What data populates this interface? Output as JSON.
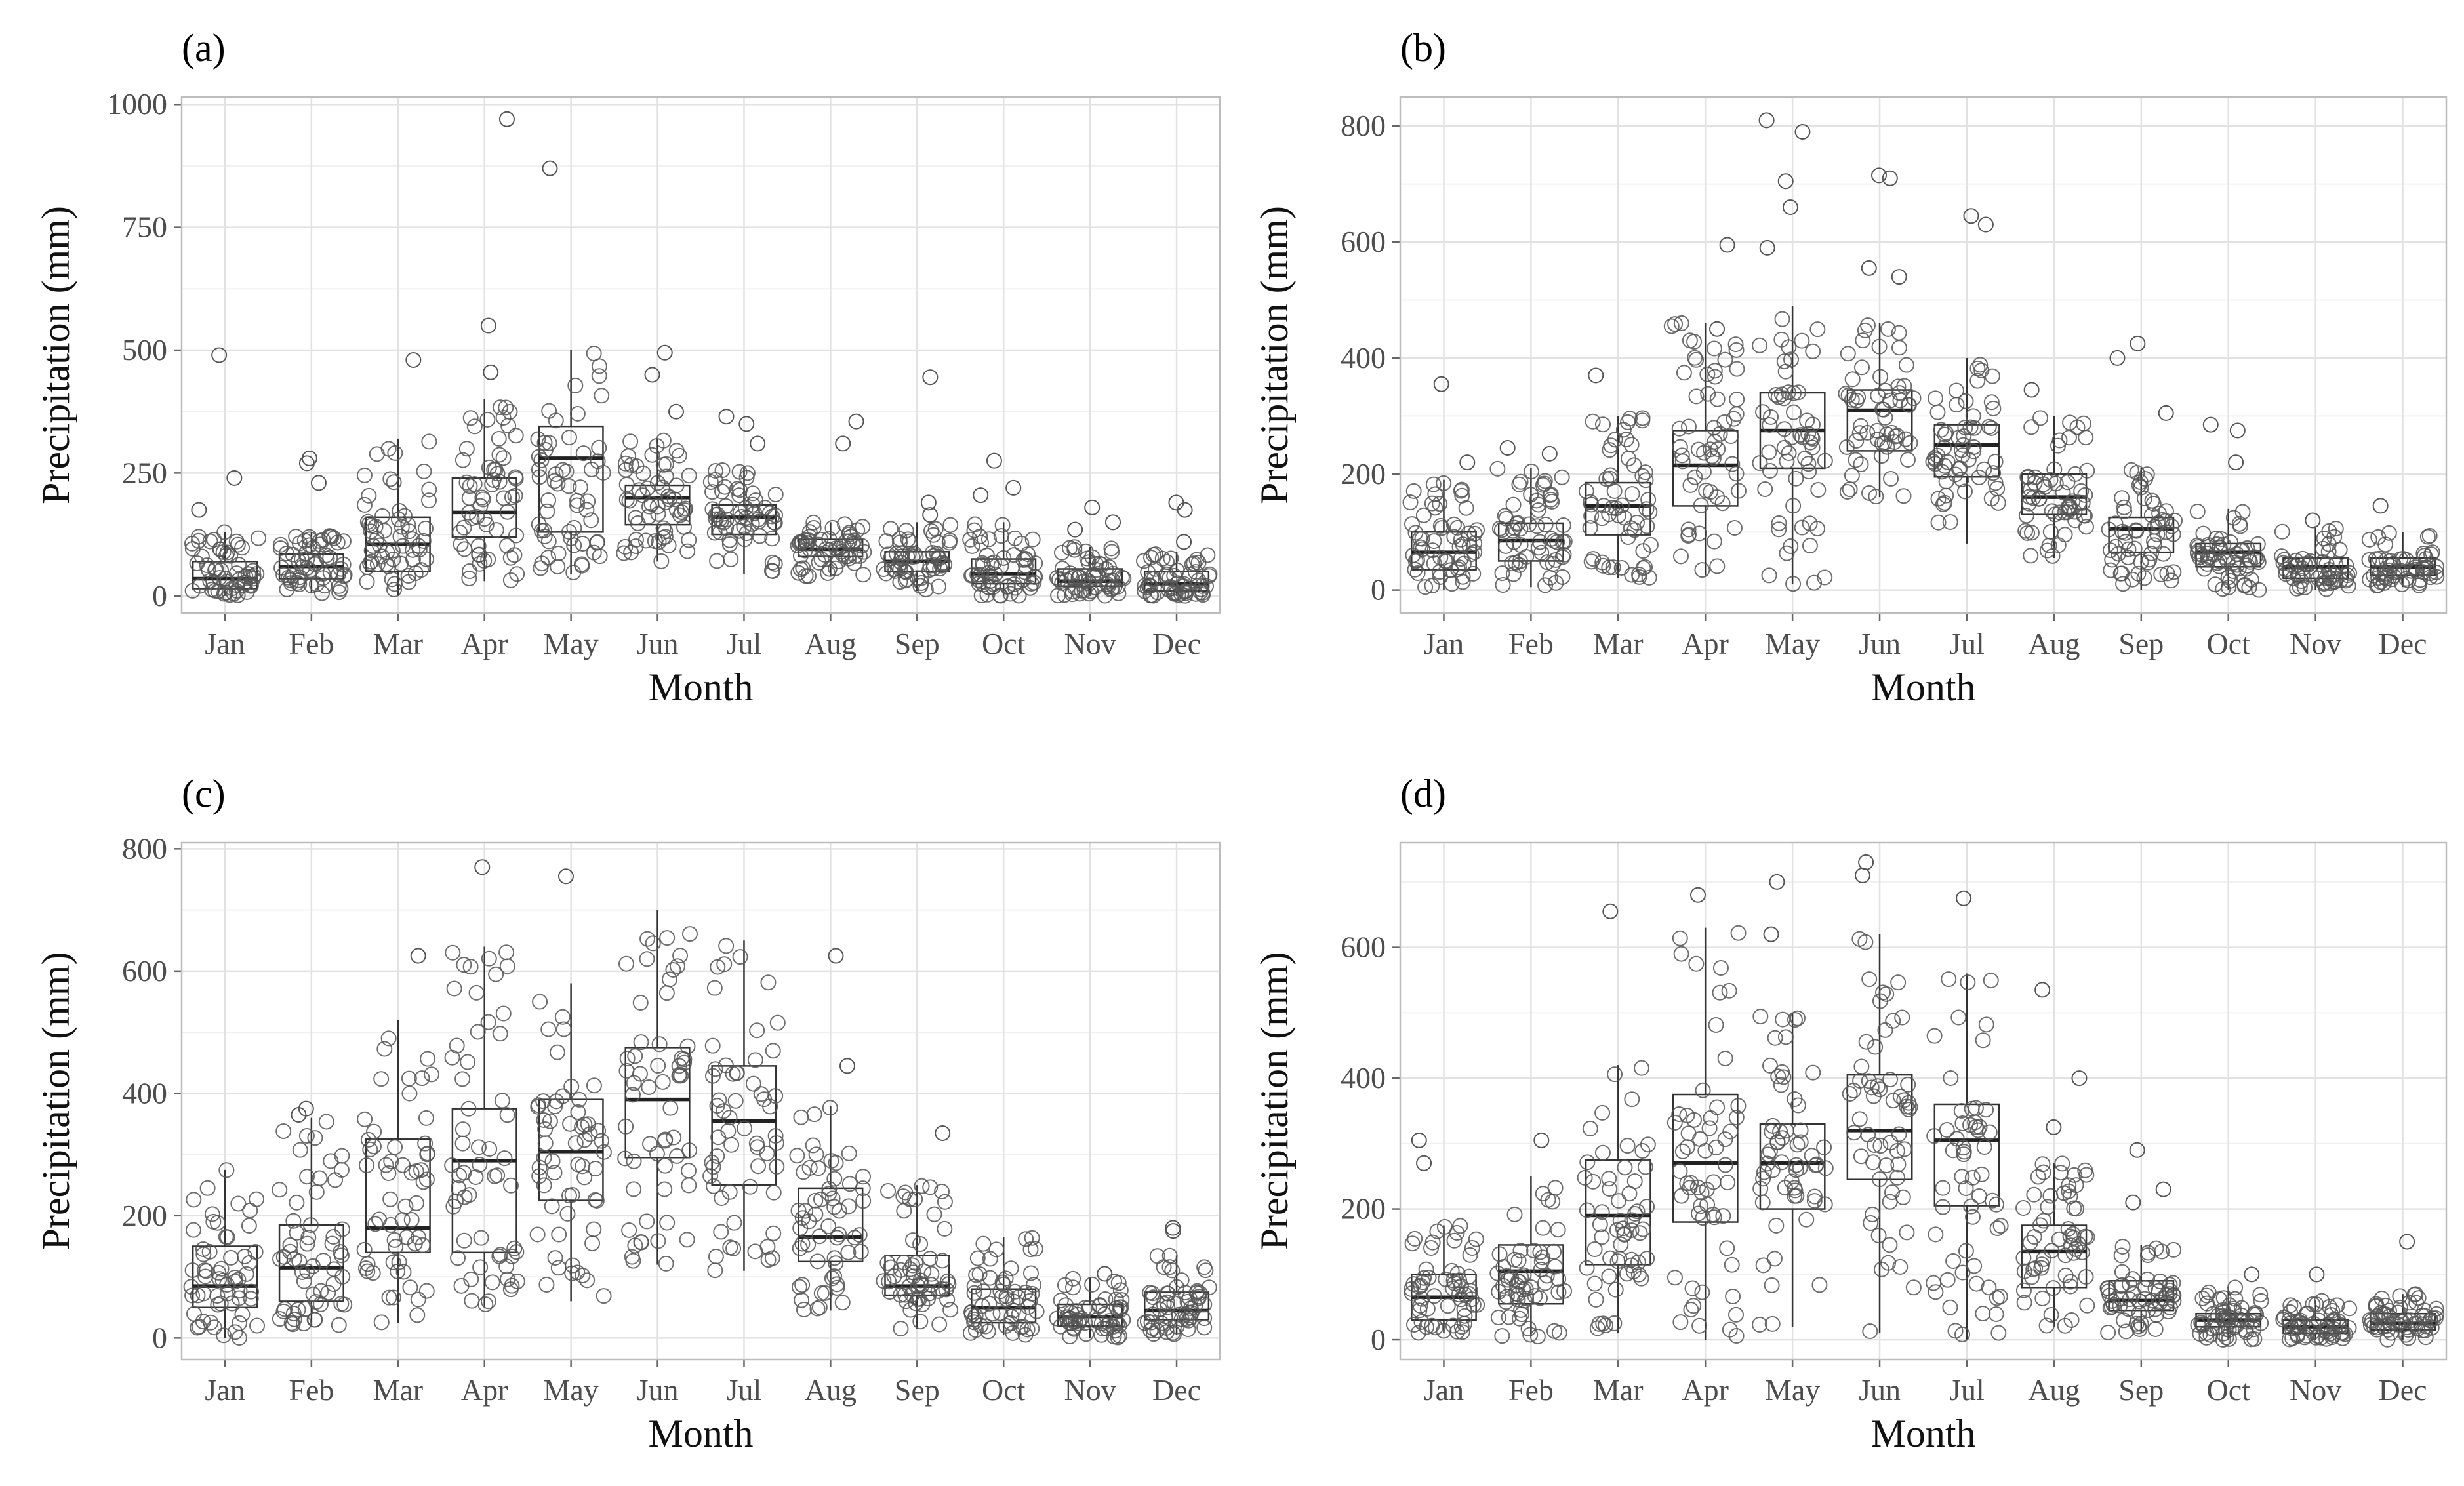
{
  "panels": [
    {
      "label": "(a)",
      "xlabel": "Month",
      "ylabel": "Precipitation (mm)"
    },
    {
      "label": "(b)",
      "xlabel": "Month",
      "ylabel": "Precipitation (mm)"
    },
    {
      "label": "(c)",
      "xlabel": "Month",
      "ylabel": "Precipitation (mm)"
    },
    {
      "label": "(d)",
      "xlabel": "Month",
      "ylabel": "Precipitation (mm)"
    }
  ],
  "chart_data": [
    {
      "type": "boxplot_with_jitter",
      "label": "(a)",
      "xlabel": "Month",
      "ylabel": "Precipitation (mm)",
      "categories": [
        "Jan",
        "Feb",
        "Mar",
        "Apr",
        "May",
        "Jun",
        "Jul",
        "Aug",
        "Sep",
        "Oct",
        "Nov",
        "Dec"
      ],
      "ylim": [
        -35,
        1015
      ],
      "yticks": [
        0,
        250,
        500,
        750,
        1000
      ],
      "grid": true,
      "boxes": [
        {
          "q1": 15,
          "median": 35,
          "q3": 70,
          "wlo": 0,
          "whi": 130
        },
        {
          "q1": 35,
          "median": 60,
          "q3": 85,
          "wlo": 5,
          "whi": 130
        },
        {
          "q1": 50,
          "median": 105,
          "q3": 160,
          "wlo": 0,
          "whi": 320
        },
        {
          "q1": 120,
          "median": 170,
          "q3": 240,
          "wlo": 30,
          "whi": 400
        },
        {
          "q1": 130,
          "median": 280,
          "q3": 345,
          "wlo": 45,
          "whi": 500
        },
        {
          "q1": 145,
          "median": 200,
          "q3": 225,
          "wlo": 70,
          "whi": 320
        },
        {
          "q1": 125,
          "median": 160,
          "q3": 185,
          "wlo": 45,
          "whi": 260
        },
        {
          "q1": 80,
          "median": 95,
          "q3": 115,
          "wlo": 40,
          "whi": 150
        },
        {
          "q1": 50,
          "median": 70,
          "q3": 90,
          "wlo": 10,
          "whi": 150
        },
        {
          "q1": 25,
          "median": 45,
          "q3": 75,
          "wlo": 0,
          "whi": 150
        },
        {
          "q1": 20,
          "median": 30,
          "q3": 55,
          "wlo": 0,
          "whi": 100
        },
        {
          "q1": 10,
          "median": 25,
          "q3": 50,
          "wlo": 0,
          "whi": 90
        }
      ],
      "outliers": [
        {
          "month": "Jan",
          "values": [
            490,
            240,
            175
          ]
        },
        {
          "month": "Feb",
          "values": [
            280,
            270,
            230
          ]
        },
        {
          "month": "Mar",
          "values": [
            480
          ]
        },
        {
          "month": "Apr",
          "values": [
            970,
            550,
            455
          ]
        },
        {
          "month": "May",
          "values": [
            870
          ]
        },
        {
          "month": "Jun",
          "values": [
            495,
            450,
            375
          ]
        },
        {
          "month": "Jul",
          "values": [
            365,
            350,
            310
          ]
        },
        {
          "month": "Aug",
          "values": [
            355,
            310
          ]
        },
        {
          "month": "Sep",
          "values": [
            445,
            190,
            165
          ]
        },
        {
          "month": "Oct",
          "values": [
            275,
            220,
            205
          ]
        },
        {
          "month": "Nov",
          "values": [
            180,
            150,
            135
          ]
        },
        {
          "month": "Dec",
          "values": [
            190,
            175,
            110
          ]
        }
      ]
    },
    {
      "type": "boxplot_with_jitter",
      "label": "(b)",
      "xlabel": "Month",
      "ylabel": "Precipitation (mm)",
      "categories": [
        "Jan",
        "Feb",
        "Mar",
        "Apr",
        "May",
        "Jun",
        "Jul",
        "Aug",
        "Sep",
        "Oct",
        "Nov",
        "Dec"
      ],
      "ylim": [
        -40,
        850
      ],
      "yticks": [
        0,
        200,
        400,
        600,
        800
      ],
      "grid": true,
      "boxes": [
        {
          "q1": 35,
          "median": 65,
          "q3": 100,
          "wlo": 0,
          "whi": 190
        },
        {
          "q1": 50,
          "median": 85,
          "q3": 115,
          "wlo": 5,
          "whi": 210
        },
        {
          "q1": 95,
          "median": 145,
          "q3": 185,
          "wlo": 20,
          "whi": 300
        },
        {
          "q1": 145,
          "median": 215,
          "q3": 275,
          "wlo": 25,
          "whi": 460
        },
        {
          "q1": 210,
          "median": 275,
          "q3": 340,
          "wlo": 10,
          "whi": 490
        },
        {
          "q1": 240,
          "median": 310,
          "q3": 345,
          "wlo": 160,
          "whi": 460
        },
        {
          "q1": 195,
          "median": 250,
          "q3": 285,
          "wlo": 80,
          "whi": 400
        },
        {
          "q1": 130,
          "median": 160,
          "q3": 200,
          "wlo": 55,
          "whi": 300
        },
        {
          "q1": 65,
          "median": 105,
          "q3": 125,
          "wlo": 0,
          "whi": 210
        },
        {
          "q1": 40,
          "median": 65,
          "q3": 80,
          "wlo": 0,
          "whi": 140
        },
        {
          "q1": 20,
          "median": 40,
          "q3": 55,
          "wlo": 0,
          "whi": 110
        },
        {
          "q1": 25,
          "median": 40,
          "q3": 55,
          "wlo": 5,
          "whi": 100
        }
      ],
      "outliers": [
        {
          "month": "Jan",
          "values": [
            355,
            220
          ]
        },
        {
          "month": "Feb",
          "values": [
            245,
            235
          ]
        },
        {
          "month": "Mar",
          "values": [
            370
          ]
        },
        {
          "month": "Apr",
          "values": [
            595,
            450
          ]
        },
        {
          "month": "May",
          "values": [
            810,
            790,
            705,
            660,
            590
          ]
        },
        {
          "month": "Jun",
          "values": [
            715,
            710,
            555,
            540
          ]
        },
        {
          "month": "Jul",
          "values": [
            645,
            630
          ]
        },
        {
          "month": "Aug",
          "values": [
            345
          ]
        },
        {
          "month": "Sep",
          "values": [
            425,
            400,
            305
          ]
        },
        {
          "month": "Oct",
          "values": [
            285,
            275,
            220
          ]
        },
        {
          "month": "Nov",
          "values": [
            120
          ]
        },
        {
          "month": "Dec",
          "values": [
            145
          ]
        }
      ]
    },
    {
      "type": "boxplot_with_jitter",
      "label": "(c)",
      "xlabel": "Month",
      "ylabel": "Precipitation (mm)",
      "categories": [
        "Jan",
        "Feb",
        "Mar",
        "Apr",
        "May",
        "Jun",
        "Jul",
        "Aug",
        "Sep",
        "Oct",
        "Nov",
        "Dec"
      ],
      "ylim": [
        -35,
        810
      ],
      "yticks": [
        0,
        200,
        400,
        600,
        800
      ],
      "grid": true,
      "boxes": [
        {
          "q1": 50,
          "median": 85,
          "q3": 150,
          "wlo": 0,
          "whi": 275
        },
        {
          "q1": 60,
          "median": 115,
          "q3": 185,
          "wlo": 20,
          "whi": 360
        },
        {
          "q1": 140,
          "median": 180,
          "q3": 325,
          "wlo": 25,
          "whi": 520
        },
        {
          "q1": 140,
          "median": 290,
          "q3": 375,
          "wlo": 50,
          "whi": 640
        },
        {
          "q1": 225,
          "median": 305,
          "q3": 390,
          "wlo": 60,
          "whi": 580
        },
        {
          "q1": 295,
          "median": 390,
          "q3": 475,
          "wlo": 120,
          "whi": 700
        },
        {
          "q1": 250,
          "median": 355,
          "q3": 445,
          "wlo": 110,
          "whi": 650
        },
        {
          "q1": 125,
          "median": 165,
          "q3": 245,
          "wlo": 45,
          "whi": 380
        },
        {
          "q1": 70,
          "median": 85,
          "q3": 135,
          "wlo": 15,
          "whi": 250
        },
        {
          "q1": 25,
          "median": 50,
          "q3": 80,
          "wlo": 5,
          "whi": 165
        },
        {
          "q1": 20,
          "median": 35,
          "q3": 55,
          "wlo": 0,
          "whi": 100
        },
        {
          "q1": 30,
          "median": 45,
          "q3": 75,
          "wlo": 5,
          "whi": 135
        }
      ],
      "outliers": [
        {
          "month": "Feb",
          "values": [
            375,
            365
          ]
        },
        {
          "month": "Mar",
          "values": [
            625
          ]
        },
        {
          "month": "Apr",
          "values": [
            770
          ]
        },
        {
          "month": "May",
          "values": [
            755
          ]
        },
        {
          "month": "Aug",
          "values": [
            625,
            445
          ]
        },
        {
          "month": "Sep",
          "values": [
            335
          ]
        },
        {
          "month": "Nov",
          "values": [
            105
          ]
        },
        {
          "month": "Dec",
          "values": [
            180,
            175
          ]
        }
      ]
    },
    {
      "type": "boxplot_with_jitter",
      "label": "(d)",
      "xlabel": "Month",
      "ylabel": "Precipitation (mm)",
      "categories": [
        "Jan",
        "Feb",
        "Mar",
        "Apr",
        "May",
        "Jun",
        "Jul",
        "Aug",
        "Sep",
        "Oct",
        "Nov",
        "Dec"
      ],
      "ylim": [
        -30,
        760
      ],
      "yticks": [
        0,
        200,
        400,
        600
      ],
      "grid": true,
      "boxes": [
        {
          "q1": 30,
          "median": 65,
          "q3": 100,
          "wlo": 10,
          "whi": 175
        },
        {
          "q1": 55,
          "median": 105,
          "q3": 145,
          "wlo": 5,
          "whi": 250
        },
        {
          "q1": 115,
          "median": 190,
          "q3": 275,
          "wlo": 10,
          "whi": 420
        },
        {
          "q1": 180,
          "median": 270,
          "q3": 375,
          "wlo": 0,
          "whi": 630
        },
        {
          "q1": 200,
          "median": 270,
          "q3": 330,
          "wlo": 20,
          "whi": 500
        },
        {
          "q1": 245,
          "median": 320,
          "q3": 405,
          "wlo": 10,
          "whi": 620
        },
        {
          "q1": 205,
          "median": 305,
          "q3": 360,
          "wlo": 0,
          "whi": 560
        },
        {
          "q1": 80,
          "median": 135,
          "q3": 175,
          "wlo": 20,
          "whi": 270
        },
        {
          "q1": 45,
          "median": 60,
          "q3": 90,
          "wlo": 10,
          "whi": 145
        },
        {
          "q1": 20,
          "median": 30,
          "q3": 40,
          "wlo": 0,
          "whi": 80
        },
        {
          "q1": 10,
          "median": 20,
          "q3": 30,
          "wlo": 0,
          "whi": 60
        },
        {
          "q1": 15,
          "median": 25,
          "q3": 40,
          "wlo": 0,
          "whi": 70
        }
      ],
      "outliers": [
        {
          "month": "Jan",
          "values": [
            305,
            270
          ]
        },
        {
          "month": "Feb",
          "values": [
            305
          ]
        },
        {
          "month": "Mar",
          "values": [
            655
          ]
        },
        {
          "month": "Apr",
          "values": [
            680
          ]
        },
        {
          "month": "May",
          "values": [
            700,
            620
          ]
        },
        {
          "month": "Jun",
          "values": [
            730,
            710
          ]
        },
        {
          "month": "Jul",
          "values": [
            675
          ]
        },
        {
          "month": "Aug",
          "values": [
            535,
            400,
            325
          ]
        },
        {
          "month": "Sep",
          "values": [
            290,
            230,
            210
          ]
        },
        {
          "month": "Oct",
          "values": [
            100
          ]
        },
        {
          "month": "Nov",
          "values": [
            100
          ]
        },
        {
          "month": "Dec",
          "values": [
            150
          ]
        }
      ]
    }
  ]
}
